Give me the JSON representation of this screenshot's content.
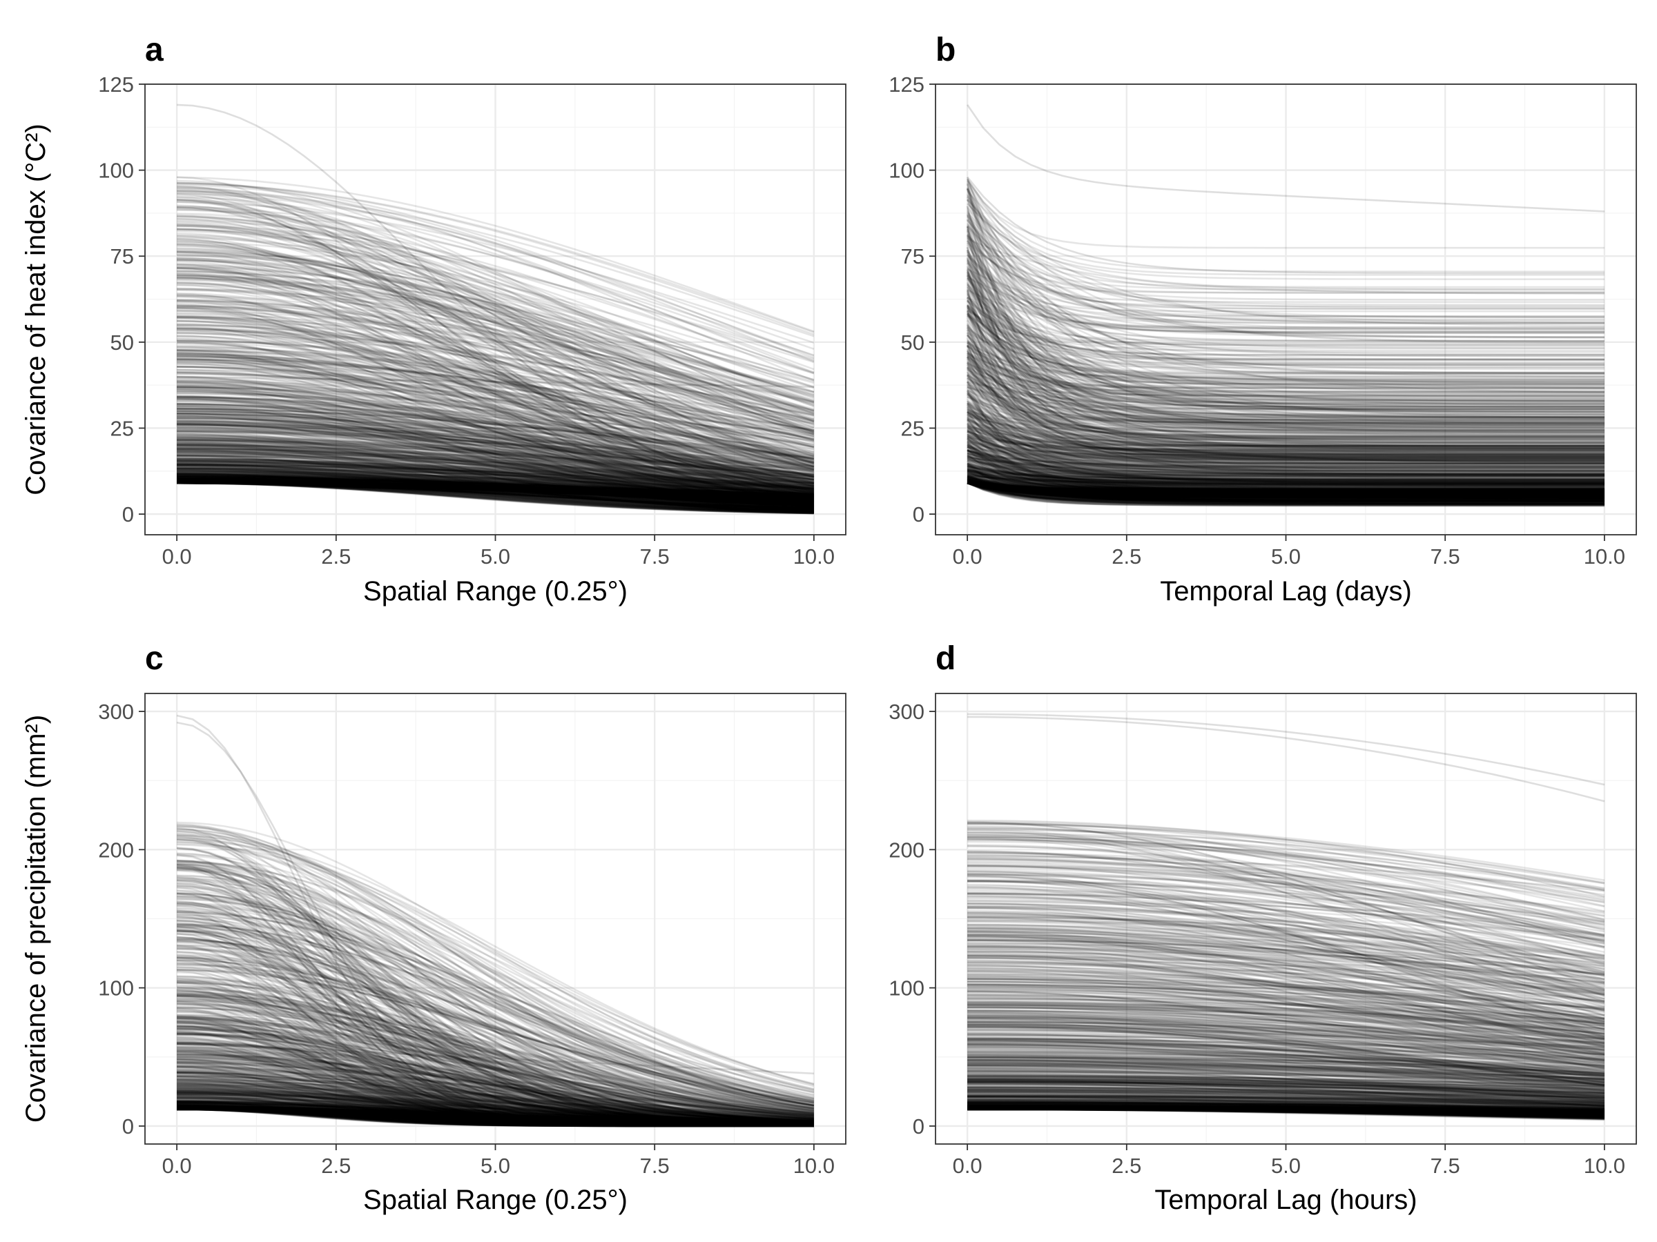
{
  "chart_data": [
    {
      "panel": "a",
      "type": "line",
      "xlabel": "Spatial Range (0.25°)",
      "ylabel": "Covariance of heat index (°C²)",
      "xlim": [
        -0.5,
        10.5
      ],
      "ylim": [
        -6,
        125
      ],
      "x_ticks": [
        "0.0",
        "2.5",
        "5.0",
        "7.5",
        "10.0"
      ],
      "y_ticks": [
        "0",
        "25",
        "50",
        "75",
        "100",
        "125"
      ],
      "line_color": "#000000",
      "line_alpha": 0.1,
      "n_lines": 1000,
      "sill_range": [
        9,
        98
      ],
      "max_sill": 119,
      "value_at_x10_range": [
        0,
        37
      ]
    },
    {
      "panel": "b",
      "type": "line",
      "xlabel": "Temporal Lag (days)",
      "ylabel": "",
      "xlim": [
        -0.5,
        10.5
      ],
      "ylim": [
        -6,
        125
      ],
      "x_ticks": [
        "0.0",
        "2.5",
        "5.0",
        "7.5",
        "10.0"
      ],
      "y_ticks": [
        "0",
        "25",
        "50",
        "75",
        "100",
        "125"
      ],
      "line_color": "#000000",
      "line_alpha": 0.1,
      "n_lines": 1000,
      "sill_range": [
        9,
        98
      ],
      "max_sill": 119,
      "value_at_x10_range": [
        1,
        88
      ]
    },
    {
      "panel": "c",
      "type": "line",
      "xlabel": "Spatial Range (0.25°)",
      "ylabel": "Covariance of precipitation (mm²)",
      "xlim": [
        -0.5,
        10.5
      ],
      "ylim": [
        -13,
        313
      ],
      "x_ticks": [
        "0.0",
        "2.5",
        "5.0",
        "7.5",
        "10.0"
      ],
      "y_ticks": [
        "0",
        "100",
        "200",
        "300"
      ],
      "line_color": "#000000",
      "line_alpha": 0.1,
      "n_lines": 1000,
      "sill_range": [
        12,
        220
      ],
      "max_sill": 297,
      "value_at_x10_range": [
        0,
        38
      ]
    },
    {
      "panel": "d",
      "type": "line",
      "xlabel": "Temporal Lag (hours)",
      "ylabel": "",
      "xlim": [
        -0.5,
        10.5
      ],
      "ylim": [
        -13,
        313
      ],
      "x_ticks": [
        "0.0",
        "2.5",
        "5.0",
        "7.5",
        "10.0"
      ],
      "y_ticks": [
        "0",
        "100",
        "200",
        "300"
      ],
      "line_color": "#000000",
      "line_alpha": 0.1,
      "n_lines": 1000,
      "sill_range": [
        12,
        220
      ],
      "max_sill": 298,
      "value_at_x10_range": [
        10,
        247
      ]
    }
  ]
}
